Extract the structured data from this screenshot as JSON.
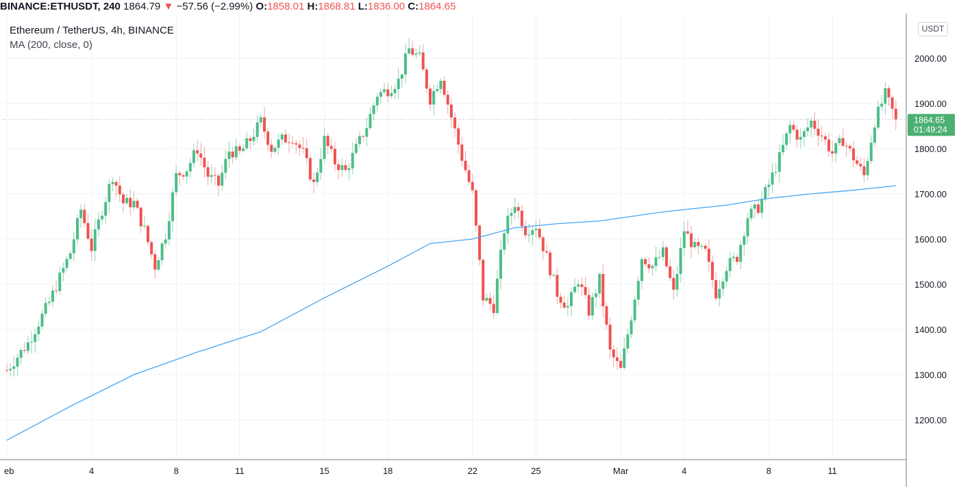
{
  "header": {
    "symbol": "BINANCE:ETHUSDT, 240",
    "last": "1864.79",
    "change_arrow": "▼",
    "change": "−57.56 (−2.99%)",
    "o_label": "O:",
    "o_value": "1858.01",
    "h_label": "H:",
    "h_value": "1868.81",
    "l_label": "L:",
    "l_value": "1836.00",
    "c_label": "C:",
    "c_value": "1864.65"
  },
  "legend": {
    "title": "Ethereum / TetherUS, 4h, BINANCE",
    "indicator": "MA (200, close, 0)"
  },
  "price_axis": {
    "unit_button": "USDT",
    "current_price": "1864.65",
    "countdown": "01:49:24"
  },
  "colors": {
    "up": "#26a69a",
    "up_fill": "#4dbd8a",
    "down": "#ef5350",
    "ma_line": "#42a5f5",
    "grid": "#eef0f3",
    "price_tag": "#4caf73"
  },
  "chart_data": {
    "type": "candlestick",
    "title": "Ethereum / TetherUS, 4h, BINANCE",
    "ylim": [
      1110,
      2060
    ],
    "y_ticks": [
      1200,
      1300,
      1400,
      1500,
      1600,
      1700,
      1800,
      1900,
      2000
    ],
    "y_tick_labels": [
      "1200.00",
      "1300.00",
      "1400.00",
      "1500.00",
      "1600.00",
      "1700.00",
      "1800.00",
      "1900.00",
      "2000.00"
    ],
    "x_ticks": [
      {
        "label": "eb",
        "day": 0
      },
      {
        "label": "4",
        "day": 4
      },
      {
        "label": "8",
        "day": 8
      },
      {
        "label": "11",
        "day": 11
      },
      {
        "label": "15",
        "day": 15
      },
      {
        "label": "18",
        "day": 18
      },
      {
        "label": "22",
        "day": 22
      },
      {
        "label": "25",
        "day": 25
      },
      {
        "label": "Mar",
        "day": 29
      },
      {
        "label": "4",
        "day": 32
      },
      {
        "label": "8",
        "day": 36
      },
      {
        "label": "11",
        "day": 39
      }
    ],
    "ma_series": {
      "name": "MA (200, close, 0)",
      "points": [
        [
          0,
          1155
        ],
        [
          3,
          1230
        ],
        [
          6,
          1300
        ],
        [
          9,
          1350
        ],
        [
          12,
          1395
        ],
        [
          15,
          1470
        ],
        [
          18,
          1540
        ],
        [
          20,
          1590
        ],
        [
          22,
          1600
        ],
        [
          24,
          1625
        ],
        [
          26,
          1634
        ],
        [
          28,
          1640
        ],
        [
          31,
          1660
        ],
        [
          34,
          1675
        ],
        [
          36,
          1690
        ],
        [
          38,
          1700
        ],
        [
          40,
          1708
        ],
        [
          42,
          1718
        ]
      ]
    },
    "close_path": [
      [
        0,
        1310
      ],
      [
        1,
        1370
      ],
      [
        2,
        1460
      ],
      [
        3,
        1570
      ],
      [
        3.5,
        1665
      ],
      [
        4,
        1580
      ],
      [
        4.5,
        1665
      ],
      [
        5,
        1740
      ],
      [
        5.5,
        1680
      ],
      [
        6,
        1680
      ],
      [
        6.5,
        1620
      ],
      [
        7,
        1540
      ],
      [
        7.5,
        1610
      ],
      [
        8,
        1740
      ],
      [
        8.5,
        1755
      ],
      [
        9,
        1800
      ],
      [
        9.5,
        1740
      ],
      [
        10,
        1720
      ],
      [
        10.5,
        1795
      ],
      [
        11,
        1790
      ],
      [
        11.5,
        1820
      ],
      [
        12,
        1860
      ],
      [
        12.5,
        1800
      ],
      [
        13,
        1820
      ],
      [
        13.5,
        1825
      ],
      [
        14,
        1790
      ],
      [
        14.5,
        1720
      ],
      [
        15,
        1820
      ],
      [
        15.5,
        1770
      ],
      [
        16,
        1750
      ],
      [
        16.5,
        1800
      ],
      [
        17,
        1850
      ],
      [
        17.5,
        1920
      ],
      [
        18,
        1930
      ],
      [
        18.5,
        1950
      ],
      [
        19,
        2020
      ],
      [
        19.5,
        2000
      ],
      [
        20,
        1910
      ],
      [
        20.5,
        1960
      ],
      [
        21,
        1870
      ],
      [
        21.5,
        1780
      ],
      [
        22,
        1700
      ],
      [
        22.5,
        1470
      ],
      [
        23,
        1450
      ],
      [
        23.5,
        1620
      ],
      [
        24,
        1680
      ],
      [
        24.5,
        1620
      ],
      [
        25,
        1630
      ],
      [
        25.5,
        1560
      ],
      [
        26,
        1480
      ],
      [
        26.5,
        1450
      ],
      [
        27,
        1510
      ],
      [
        27.5,
        1440
      ],
      [
        28,
        1510
      ],
      [
        28.5,
        1350
      ],
      [
        29,
        1310
      ],
      [
        29.5,
        1430
      ],
      [
        30,
        1560
      ],
      [
        30.5,
        1540
      ],
      [
        31,
        1570
      ],
      [
        31.5,
        1480
      ],
      [
        32,
        1620
      ],
      [
        32.5,
        1580
      ],
      [
        33,
        1570
      ],
      [
        33.5,
        1480
      ],
      [
        34,
        1540
      ],
      [
        34.5,
        1560
      ],
      [
        35,
        1650
      ],
      [
        35.5,
        1670
      ],
      [
        36,
        1720
      ],
      [
        36.5,
        1780
      ],
      [
        37,
        1850
      ],
      [
        37.5,
        1820
      ],
      [
        38,
        1860
      ],
      [
        38.5,
        1830
      ],
      [
        39,
        1790
      ],
      [
        39.5,
        1820
      ],
      [
        40,
        1780
      ],
      [
        40.5,
        1740
      ],
      [
        41,
        1860
      ],
      [
        41.5,
        1920
      ],
      [
        42,
        1865
      ]
    ],
    "last_close": 1864.65
  }
}
